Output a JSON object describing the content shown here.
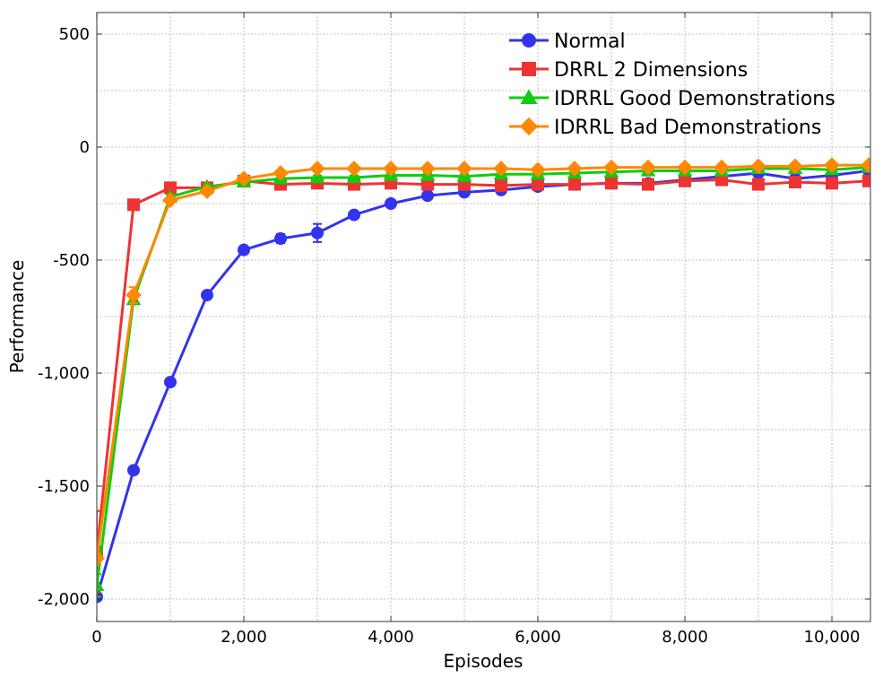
{
  "chart_data": {
    "type": "line",
    "title": "",
    "xlabel": "Episodes",
    "ylabel": "Performance",
    "xlim": [
      0,
      10500
    ],
    "ylim": [
      -2100,
      500
    ],
    "x_ticks": [
      0,
      2000,
      4000,
      6000,
      8000,
      10000
    ],
    "x_tick_labels": [
      "0",
      "2,000",
      "4,000",
      "6,000",
      "8,000",
      "10,000"
    ],
    "y_ticks": [
      500,
      0,
      -500,
      -1000,
      -1500,
      -2000
    ],
    "y_tick_labels": [
      "500",
      "0",
      "-500",
      "-1,000",
      "-1,500",
      "-2,000"
    ],
    "grid": true,
    "legend_position": "top-right",
    "x": [
      0,
      500,
      1000,
      1500,
      2000,
      2500,
      3000,
      3500,
      4000,
      4500,
      5000,
      5500,
      6000,
      6500,
      7000,
      7500,
      8000,
      8500,
      9000,
      9500,
      10000,
      10500
    ],
    "series": [
      {
        "name": "Normal",
        "color": "#3333ee",
        "marker": "circle",
        "values": [
          -1990,
          -1430,
          -1040,
          -655,
          -455,
          -405,
          -380,
          -300,
          -250,
          -215,
          -200,
          -190,
          -175,
          -165,
          -160,
          -160,
          -145,
          -130,
          -115,
          -140,
          -125,
          -105
        ],
        "error": [
          10,
          10,
          10,
          10,
          10,
          20,
          40,
          10,
          10,
          10,
          10,
          10,
          10,
          10,
          10,
          10,
          10,
          10,
          10,
          10,
          10,
          10
        ]
      },
      {
        "name": "DRRL 2 Dimensions",
        "color": "#ee3333",
        "marker": "square",
        "values": [
          -1790,
          -255,
          -180,
          -180,
          -150,
          -165,
          -160,
          -165,
          -160,
          -165,
          -165,
          -170,
          -165,
          -165,
          -160,
          -165,
          -150,
          -145,
          -165,
          -155,
          -160,
          -150
        ],
        "error": [
          180,
          10,
          10,
          10,
          10,
          10,
          10,
          10,
          10,
          10,
          10,
          10,
          10,
          10,
          10,
          10,
          10,
          10,
          10,
          10,
          10,
          10
        ]
      },
      {
        "name": "IDRRL Good Demonstrations",
        "color": "#11cc11",
        "marker": "triangle",
        "values": [
          -1940,
          -675,
          -220,
          -175,
          -155,
          -140,
          -135,
          -135,
          -125,
          -125,
          -130,
          -120,
          -120,
          -115,
          -110,
          -105,
          -105,
          -105,
          -95,
          -95,
          -100,
          -90
        ],
        "error": [
          50,
          15,
          10,
          10,
          10,
          10,
          10,
          10,
          10,
          10,
          10,
          10,
          10,
          10,
          10,
          10,
          10,
          10,
          10,
          10,
          10,
          10
        ]
      },
      {
        "name": "IDRRL Bad Demonstrations",
        "color": "#ff8800",
        "marker": "diamond",
        "values": [
          -1820,
          -655,
          -235,
          -195,
          -140,
          -115,
          -95,
          -95,
          -95,
          -95,
          -95,
          -95,
          -100,
          -95,
          -90,
          -90,
          -90,
          -90,
          -85,
          -85,
          -80,
          -80
        ],
        "error": [
          20,
          35,
          10,
          10,
          10,
          10,
          10,
          10,
          10,
          10,
          10,
          10,
          10,
          10,
          10,
          10,
          10,
          10,
          10,
          10,
          10,
          10
        ]
      }
    ]
  }
}
